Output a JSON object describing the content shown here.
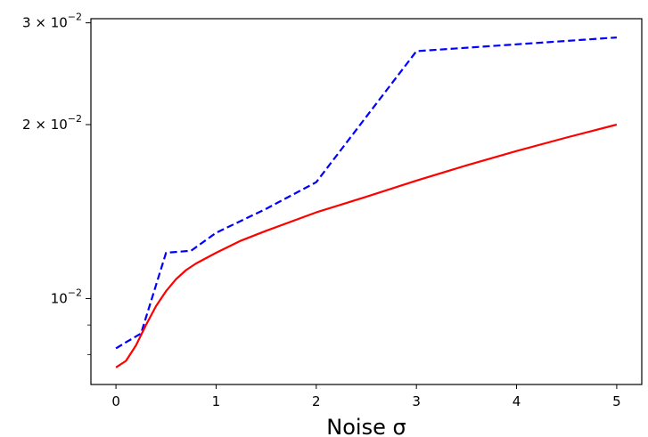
{
  "chart_data": {
    "type": "line",
    "title": "",
    "xlabel": "Noise σ",
    "ylabel": "",
    "xlim": [
      -0.25,
      5.25
    ],
    "ylim": [
      0.0071,
      0.0305
    ],
    "yscale": "log",
    "grid": false,
    "legend": "none",
    "x_ticks": [
      {
        "value": 0,
        "label": "0"
      },
      {
        "value": 1,
        "label": "1"
      },
      {
        "value": 2,
        "label": "2"
      },
      {
        "value": 3,
        "label": "3"
      },
      {
        "value": 4,
        "label": "4"
      },
      {
        "value": 5,
        "label": "5"
      }
    ],
    "y_major_ticks": [
      {
        "value": 0.01,
        "base": "10",
        "exp": "−2",
        "coef": ""
      },
      {
        "value": 0.02,
        "base": "10",
        "exp": "−2",
        "coef": "2 × "
      },
      {
        "value": 0.03,
        "base": "10",
        "exp": "−2",
        "coef": "3 × "
      }
    ],
    "y_minor_ticks": [
      0.008,
      0.009
    ],
    "series": [
      {
        "color": "#0000ff",
        "style": "dashed",
        "x": [
          0,
          0.1,
          0.25,
          0.5,
          0.75,
          1.0,
          1.5,
          2.0,
          3.0,
          5.0
        ],
        "y": [
          0.0082,
          0.0084,
          0.0087,
          0.012,
          0.0121,
          0.013,
          0.0143,
          0.0159,
          0.0268,
          0.0283
        ]
      },
      {
        "color": "#ff0000",
        "style": "solid",
        "x": [
          0,
          0.1,
          0.2,
          0.3,
          0.4,
          0.5,
          0.6,
          0.7,
          0.8,
          1.0,
          1.25,
          1.5,
          2.0,
          2.5,
          3.0,
          3.5,
          4.0,
          4.5,
          5.0
        ],
        "y": [
          0.0076,
          0.0078,
          0.0083,
          0.009,
          0.0097,
          0.0103,
          0.0108,
          0.0112,
          0.0115,
          0.012,
          0.0126,
          0.0131,
          0.0141,
          0.015,
          0.016,
          0.017,
          0.018,
          0.019,
          0.02
        ]
      }
    ]
  }
}
